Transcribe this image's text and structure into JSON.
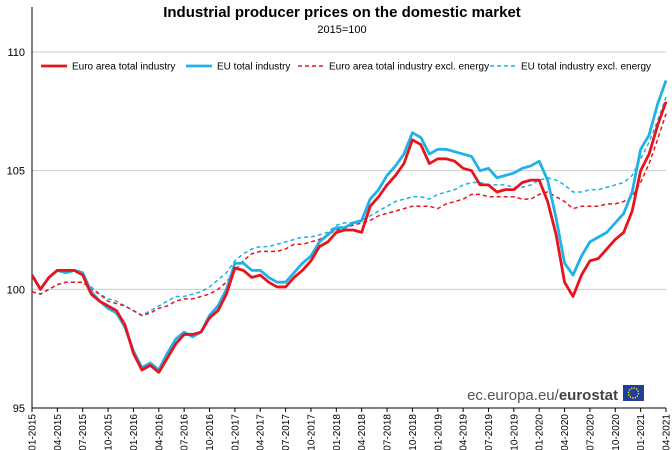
{
  "chart_data": {
    "type": "line",
    "title": "Industrial producer prices on the domestic market",
    "subtitle": "2015=100",
    "xlabel": "",
    "ylabel": "",
    "ylim": [
      95,
      110
    ],
    "yticks": [
      95,
      100,
      105,
      110
    ],
    "grid": "horizontal",
    "legend_position": "top",
    "source": "ec.europa.eu/eurostat",
    "source_prefix": "ec.europa.eu/",
    "source_brand": "eurostat",
    "x": [
      "01-2015",
      "02-2015",
      "03-2015",
      "04-2015",
      "05-2015",
      "06-2015",
      "07-2015",
      "08-2015",
      "09-2015",
      "10-2015",
      "11-2015",
      "12-2015",
      "01-2016",
      "02-2016",
      "03-2016",
      "04-2016",
      "05-2016",
      "06-2016",
      "07-2016",
      "08-2016",
      "09-2016",
      "10-2016",
      "11-2016",
      "12-2016",
      "01-2017",
      "02-2017",
      "03-2017",
      "04-2017",
      "05-2017",
      "06-2017",
      "07-2017",
      "08-2017",
      "09-2017",
      "10-2017",
      "11-2017",
      "12-2017",
      "01-2018",
      "02-2018",
      "03-2018",
      "04-2018",
      "05-2018",
      "06-2018",
      "07-2018",
      "08-2018",
      "09-2018",
      "10-2018",
      "11-2018",
      "12-2018",
      "01-2019",
      "02-2019",
      "03-2019",
      "04-2019",
      "05-2019",
      "06-2019",
      "07-2019",
      "08-2019",
      "09-2019",
      "10-2019",
      "11-2019",
      "12-2019",
      "01-2020",
      "02-2020",
      "03-2020",
      "04-2020",
      "05-2020",
      "06-2020",
      "07-2020",
      "08-2020",
      "09-2020",
      "10-2020",
      "11-2020",
      "12-2020",
      "01-2021",
      "02-2021",
      "03-2021",
      "04-2021"
    ],
    "xtick_labels": [
      "01-2015",
      "04-2015",
      "07-2015",
      "10-2015",
      "01-2016",
      "04-2016",
      "07-2016",
      "10-2016",
      "01-2017",
      "04-2017",
      "07-2017",
      "10-2017",
      "01-2018",
      "04-2018",
      "07-2018",
      "10-2018",
      "01-2019",
      "04-2019",
      "07-2019",
      "10-2019",
      "01-2020",
      "04-2020",
      "07-2020",
      "10-2020",
      "01-2021",
      "04-2021"
    ],
    "series": [
      {
        "name": "Euro area total industry",
        "color": "#e8141d",
        "style": "solid",
        "values": [
          100.6,
          100.0,
          100.5,
          100.8,
          100.8,
          100.8,
          100.6,
          99.8,
          99.5,
          99.3,
          99.1,
          98.5,
          97.3,
          96.6,
          96.8,
          96.5,
          97.1,
          97.7,
          98.1,
          98.1,
          98.2,
          98.8,
          99.1,
          99.8,
          100.9,
          100.8,
          100.5,
          100.6,
          100.3,
          100.1,
          100.1,
          100.5,
          100.8,
          101.2,
          101.8,
          102.0,
          102.4,
          102.5,
          102.5,
          102.4,
          103.5,
          103.9,
          104.4,
          104.8,
          105.3,
          106.3,
          106.1,
          105.3,
          105.5,
          105.5,
          105.4,
          105.1,
          105.0,
          104.4,
          104.4,
          104.1,
          104.2,
          104.2,
          104.5,
          104.6,
          104.6,
          103.7,
          102.3,
          100.3,
          99.7,
          100.6,
          101.2,
          101.3,
          101.7,
          102.1,
          102.4,
          103.3,
          105.0,
          105.7,
          106.9,
          107.9
        ]
      },
      {
        "name": "EU total industry",
        "color": "#1eb2e6",
        "style": "solid",
        "values": [
          100.6,
          100.0,
          100.5,
          100.8,
          100.7,
          100.8,
          100.7,
          99.9,
          99.5,
          99.2,
          99.0,
          98.4,
          97.4,
          96.7,
          96.9,
          96.6,
          97.3,
          97.9,
          98.2,
          98.0,
          98.2,
          98.9,
          99.3,
          100.0,
          101.1,
          101.1,
          100.8,
          100.8,
          100.5,
          100.3,
          100.3,
          100.7,
          101.1,
          101.4,
          102.0,
          102.3,
          102.6,
          102.6,
          102.8,
          102.9,
          103.8,
          104.2,
          104.8,
          105.2,
          105.7,
          106.6,
          106.4,
          105.7,
          105.9,
          105.9,
          105.8,
          105.7,
          105.6,
          105.0,
          105.1,
          104.7,
          104.8,
          104.9,
          105.1,
          105.2,
          105.4,
          104.6,
          103.0,
          101.1,
          100.6,
          101.4,
          102.0,
          102.2,
          102.4,
          102.8,
          103.2,
          104.1,
          105.9,
          106.5,
          107.8,
          108.8
        ]
      },
      {
        "name": "Euro area total industry excl. energy",
        "color": "#e8141d",
        "style": "dashed",
        "values": [
          99.9,
          99.8,
          100.0,
          100.2,
          100.3,
          100.3,
          100.3,
          100.0,
          99.8,
          99.5,
          99.4,
          99.3,
          99.1,
          98.9,
          99.0,
          99.2,
          99.3,
          99.5,
          99.6,
          99.6,
          99.7,
          99.8,
          100.0,
          100.3,
          100.8,
          101.2,
          101.5,
          101.6,
          101.6,
          101.6,
          101.7,
          101.9,
          101.9,
          102.0,
          102.1,
          102.3,
          102.5,
          102.6,
          102.7,
          102.8,
          102.9,
          103.1,
          103.2,
          103.3,
          103.4,
          103.5,
          103.5,
          103.5,
          103.4,
          103.6,
          103.7,
          103.8,
          104.0,
          104.0,
          103.9,
          103.9,
          103.9,
          103.9,
          103.8,
          103.8,
          104.0,
          104.1,
          103.9,
          103.7,
          103.4,
          103.5,
          103.5,
          103.5,
          103.6,
          103.6,
          103.7,
          103.9,
          104.5,
          105.3,
          106.3,
          107.4
        ]
      },
      {
        "name": "EU total industry excl. energy",
        "color": "#1eb2e6",
        "style": "dashed",
        "values": [
          99.9,
          99.8,
          100.0,
          100.2,
          100.3,
          100.3,
          100.3,
          100.1,
          99.8,
          99.6,
          99.5,
          99.3,
          99.1,
          98.9,
          99.1,
          99.3,
          99.5,
          99.7,
          99.7,
          99.8,
          99.9,
          100.1,
          100.4,
          100.7,
          101.2,
          101.5,
          101.7,
          101.8,
          101.8,
          101.9,
          102.0,
          102.1,
          102.2,
          102.2,
          102.3,
          102.4,
          102.7,
          102.8,
          102.8,
          102.9,
          103.1,
          103.3,
          103.5,
          103.7,
          103.8,
          103.9,
          103.9,
          103.8,
          104.0,
          104.1,
          104.2,
          104.4,
          104.5,
          104.5,
          104.4,
          104.4,
          104.4,
          104.3,
          104.3,
          104.4,
          104.6,
          104.7,
          104.6,
          104.4,
          104.1,
          104.1,
          104.2,
          104.2,
          104.3,
          104.4,
          104.5,
          104.8,
          105.5,
          106.2,
          107.1,
          108.1
        ]
      }
    ]
  }
}
